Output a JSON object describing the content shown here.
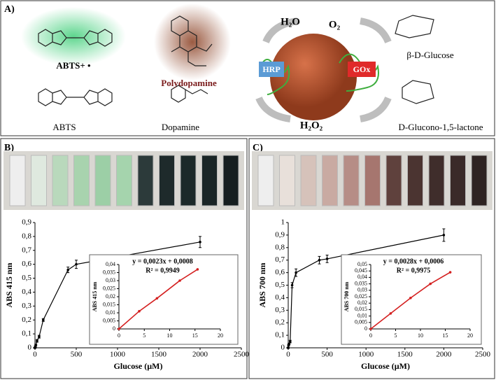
{
  "panels": {
    "a": "A)",
    "b": "B)",
    "c": "C)"
  },
  "scheme": {
    "abts_radical": "ABTS+ •",
    "polydopamine": "Polydopamine",
    "abts": "ABTS",
    "dopamine": "Dopamine",
    "water": "H₂O",
    "oxygen": "O₂",
    "hrp": "HRP",
    "gox": "GOx",
    "peroxide": "H₂O₂",
    "glucose": "β-D-Glucose",
    "lactone": "D-Glucono-1,5-lactone"
  },
  "chart_data": [
    {
      "type": "line",
      "xlabel": "Glucose (µM)",
      "ylabel": "ABS 415 nm",
      "color": "#000000",
      "x": [
        0,
        5,
        10,
        25,
        50,
        100,
        400,
        500,
        2000
      ],
      "values": [
        0,
        0.01,
        0.02,
        0.05,
        0.08,
        0.2,
        0.56,
        0.6,
        0.76
      ],
      "errors": [
        0.005,
        0.005,
        0.005,
        0.01,
        0.01,
        0.01,
        0.02,
        0.03,
        0.04
      ],
      "xlim": [
        0,
        2500
      ],
      "xticks": [
        0,
        500,
        1000,
        1500,
        2000,
        2500
      ],
      "ylim": [
        0,
        0.9
      ],
      "yticks": [
        0,
        {
          "value": 0.1,
          "label": "0,1"
        },
        {
          "value": 0.2,
          "label": "0,2"
        },
        {
          "value": 0.3,
          "label": "0,3"
        },
        {
          "value": 0.4,
          "label": "0,4"
        },
        {
          "value": 0.5,
          "label": "0,5"
        },
        {
          "value": 0.6,
          "label": "0,6"
        },
        {
          "value": 0.7,
          "label": "0,7"
        },
        {
          "value": 0.8,
          "label": "0,8"
        },
        {
          "value": 0.9,
          "label": "0,9"
        }
      ]
    },
    {
      "type": "line",
      "ylabel": "ABS 415 nm",
      "color": "#d42020",
      "annotations": [
        "y = 0,0023x + 0,0008",
        "R² = 0,9949"
      ],
      "x": [
        0,
        4,
        7.5,
        12,
        15.5
      ],
      "values": [
        0,
        0.011,
        0.019,
        0.03,
        0.037
      ],
      "xlim": [
        0,
        20
      ],
      "xticks": [
        0,
        5,
        10,
        15,
        20
      ],
      "ylim": [
        0,
        0.04
      ],
      "yticks": [
        0,
        {
          "value": 0.005,
          "label": "0,005"
        },
        {
          "value": 0.01,
          "label": "0,01"
        },
        {
          "value": 0.015,
          "label": "0,015"
        },
        {
          "value": 0.02,
          "label": "0,02"
        },
        {
          "value": 0.025,
          "label": "0,025"
        },
        {
          "value": 0.03,
          "label": "0,03"
        },
        {
          "value": 0.035,
          "label": "0,035"
        },
        {
          "value": 0.04,
          "label": "0,04"
        }
      ]
    },
    {
      "type": "line",
      "xlabel": "Glucose (µM)",
      "ylabel": "ABS 700 nm",
      "color": "#000000",
      "x": [
        0,
        5,
        10,
        25,
        50,
        100,
        400,
        500,
        2000
      ],
      "values": [
        0,
        0.02,
        0.03,
        0.05,
        0.5,
        0.6,
        0.7,
        0.71,
        0.9
      ],
      "errors": [
        0.005,
        0.005,
        0.005,
        0.01,
        0.02,
        0.03,
        0.03,
        0.03,
        0.05
      ],
      "xlim": [
        0,
        2500
      ],
      "xticks": [
        0,
        500,
        1000,
        1500,
        2000,
        2500
      ],
      "ylim": [
        0,
        1
      ],
      "yticks": [
        0,
        {
          "value": 0.1,
          "label": "0,1"
        },
        {
          "value": 0.2,
          "label": "0,2"
        },
        {
          "value": 0.3,
          "label": "0,3"
        },
        {
          "value": 0.4,
          "label": "0,4"
        },
        {
          "value": 0.5,
          "label": "0,5"
        },
        {
          "value": 0.6,
          "label": "0,6"
        },
        {
          "value": 0.7,
          "label": "0,7"
        },
        {
          "value": 0.8,
          "label": "0,8"
        },
        {
          "value": 0.9,
          "label": "0,9"
        },
        1
      ]
    },
    {
      "type": "line",
      "ylabel": "ABS 700 nm",
      "color": "#d42020",
      "annotations": [
        "y = 0,0028x + 0,0006",
        "R² = 0,9975"
      ],
      "x": [
        0,
        4,
        8,
        12,
        16
      ],
      "values": [
        0,
        0.012,
        0.024,
        0.035,
        0.044
      ],
      "xlim": [
        0,
        20
      ],
      "xticks": [
        0,
        5,
        10,
        15,
        20
      ],
      "ylim": [
        0,
        0.05
      ],
      "yticks": [
        0,
        {
          "value": 0.005,
          "label": "0,005"
        },
        {
          "value": 0.01,
          "label": "0,01"
        },
        {
          "value": 0.015,
          "label": "0,015"
        },
        {
          "value": 0.02,
          "label": "0,02"
        },
        {
          "value": 0.025,
          "label": "0,025"
        },
        {
          "value": 0.03,
          "label": "0,03"
        },
        {
          "value": 0.035,
          "label": "0,035"
        },
        {
          "value": 0.04,
          "label": "0,04"
        },
        {
          "value": 0.045,
          "label": "0,045"
        },
        {
          "value": 0.05,
          "label": "0,05"
        }
      ]
    }
  ]
}
